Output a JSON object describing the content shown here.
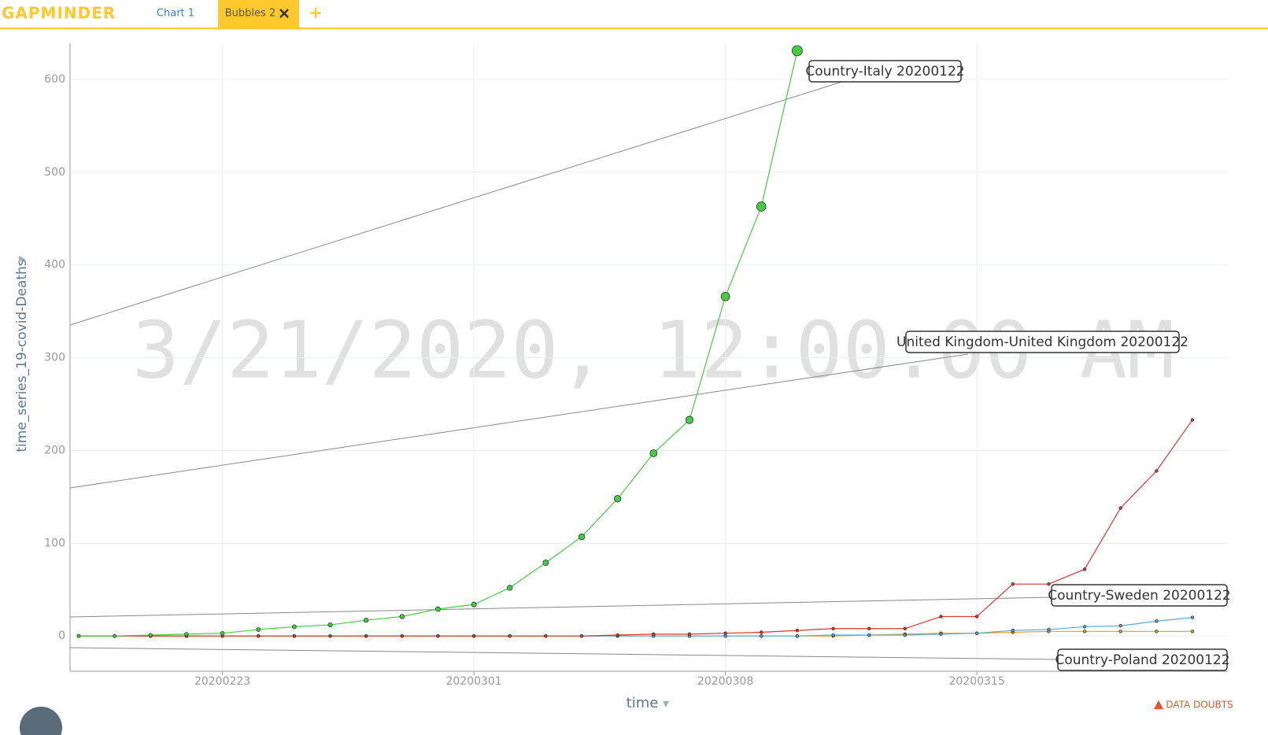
{
  "header": {
    "logo": "GAPMINDER",
    "tabs": [
      "Chart 1",
      "Bubbles 2"
    ]
  },
  "chart_data": {
    "type": "line",
    "ylabel": "time_series_19-covid-Deaths",
    "xlabel": "time",
    "watermark": "3/21/2020, 12:00:00 AM",
    "x": [
      "20200219",
      "20200220",
      "20200221",
      "20200222",
      "20200223",
      "20200224",
      "20200225",
      "20200226",
      "20200227",
      "20200228",
      "20200229",
      "20200301",
      "20200302",
      "20200303",
      "20200304",
      "20200305",
      "20200306",
      "20200307",
      "20200308",
      "20200309",
      "20200310",
      "20200311",
      "20200312",
      "20200313",
      "20200314",
      "20200315",
      "20200316",
      "20200317",
      "20200318",
      "20200319",
      "20200320",
      "20200321"
    ],
    "xlim": [
      "20200219",
      "20200321"
    ],
    "xticks": [
      "20200223",
      "20200301",
      "20200308",
      "20200315"
    ],
    "ylim": [
      -38,
      639
    ],
    "yticks": [
      0,
      100,
      200,
      300,
      400,
      500,
      600
    ],
    "grid": true,
    "series": [
      {
        "name": "Country-Italy 20200122",
        "color": "#44cc44",
        "values": [
          0,
          0,
          1,
          2,
          3,
          7,
          10,
          12,
          17,
          21,
          29,
          34,
          52,
          79,
          107,
          148,
          197,
          233,
          366,
          463,
          631,
          null,
          null,
          null,
          null,
          null,
          null,
          null,
          null,
          null,
          null,
          null
        ]
      },
      {
        "name": "United Kingdom-United Kingdom 20200122",
        "color": "#dd3333",
        "values": [
          0,
          0,
          0,
          0,
          0,
          0,
          0,
          0,
          0,
          0,
          0,
          0,
          0,
          0,
          0,
          1,
          2,
          2,
          3,
          4,
          6,
          8,
          8,
          8,
          21,
          21,
          56,
          56,
          72,
          138,
          178,
          233
        ]
      },
      {
        "name": "Country-Sweden 20200122",
        "color": "#5fa8d3",
        "values": [
          0,
          0,
          0,
          0,
          0,
          0,
          0,
          0,
          0,
          0,
          0,
          0,
          0,
          0,
          0,
          0,
          0,
          0,
          0,
          0,
          0,
          1,
          1,
          1,
          2,
          3,
          6,
          7,
          10,
          11,
          16,
          20
        ]
      },
      {
        "name": "Country-Poland 20200122",
        "color": "#e8a020",
        "values": [
          0,
          0,
          0,
          0,
          0,
          0,
          0,
          0,
          0,
          0,
          0,
          0,
          0,
          0,
          0,
          0,
          0,
          0,
          0,
          0,
          0,
          0,
          1,
          2,
          3,
          3,
          4,
          5,
          5,
          5,
          5,
          5
        ]
      }
    ]
  },
  "footer": {
    "data_doubts": "DATA DOUBTS"
  }
}
